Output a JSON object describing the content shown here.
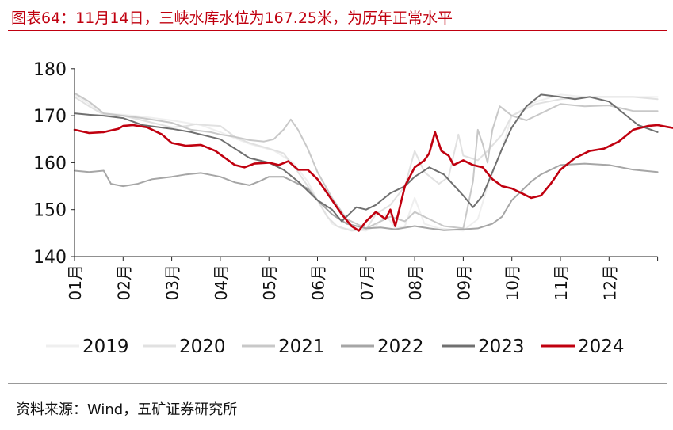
{
  "figure": {
    "title": "图表64：11月14日，三峡水库水位为167.25米，为历年正常水平",
    "source": "资料来源：Wind，五矿证券研究所"
  },
  "chart_data": {
    "type": "line",
    "title": "图表64：11月14日，三峡水库水位为167.25米，为历年正常水平",
    "xlabel": "",
    "ylabel": "",
    "x_ticks": [
      "01月",
      "02月",
      "03月",
      "04月",
      "05月",
      "06月",
      "07月",
      "08月",
      "09月",
      "10月",
      "11月",
      "12月"
    ],
    "y_ticks": [
      140,
      150,
      160,
      170,
      180
    ],
    "ylim": [
      140,
      180
    ],
    "x_unit": "month (1 = Jan 1, 13 = Dec 31 end)",
    "grid": false,
    "legend_position": "bottom",
    "series": [
      {
        "name": "2019",
        "color": "#efefef",
        "points": [
          [
            1.0,
            174.5
          ],
          [
            1.3,
            172.5
          ],
          [
            1.6,
            170.5
          ],
          [
            2.0,
            170.2
          ],
          [
            2.4,
            169.8
          ],
          [
            3.0,
            169.0
          ],
          [
            3.3,
            168.5
          ],
          [
            3.6,
            168.0
          ],
          [
            4.0,
            166.5
          ],
          [
            4.3,
            165.2
          ],
          [
            4.6,
            164.0
          ],
          [
            4.8,
            163.4
          ],
          [
            5.1,
            162.6
          ],
          [
            5.5,
            160.0
          ],
          [
            5.8,
            156.0
          ],
          [
            6.0,
            152.0
          ],
          [
            6.3,
            147.0
          ],
          [
            6.5,
            146.0
          ],
          [
            7.0,
            145.5
          ],
          [
            7.2,
            146.5
          ],
          [
            7.4,
            149.0
          ],
          [
            7.6,
            146.0
          ],
          [
            7.8,
            146.5
          ],
          [
            8.0,
            152.5
          ],
          [
            8.2,
            147.0
          ],
          [
            8.5,
            146.0
          ],
          [
            9.0,
            145.5
          ],
          [
            9.3,
            148.0
          ],
          [
            9.5,
            155.0
          ],
          [
            9.8,
            163.0
          ],
          [
            10.0,
            170.0
          ],
          [
            10.5,
            173.0
          ],
          [
            11.0,
            174.5
          ],
          [
            11.5,
            174.0
          ],
          [
            12.0,
            174.0
          ],
          [
            12.5,
            174.0
          ],
          [
            13.0,
            174.0
          ]
        ]
      },
      {
        "name": "2020",
        "color": "#e1e1e1",
        "points": [
          [
            1.0,
            174.0
          ],
          [
            1.3,
            172.0
          ],
          [
            1.6,
            170.2
          ],
          [
            2.0,
            170.0
          ],
          [
            2.4,
            169.0
          ],
          [
            3.0,
            167.5
          ],
          [
            3.3,
            167.8
          ],
          [
            3.5,
            168.2
          ],
          [
            3.7,
            168.0
          ],
          [
            4.0,
            167.8
          ],
          [
            4.3,
            165.5
          ],
          [
            4.6,
            164.2
          ],
          [
            5.0,
            163.0
          ],
          [
            5.3,
            162.0
          ],
          [
            5.6,
            158.0
          ],
          [
            6.0,
            152.0
          ],
          [
            6.2,
            148.5
          ],
          [
            6.4,
            146.5
          ],
          [
            6.7,
            145.5
          ],
          [
            7.0,
            145.8
          ],
          [
            7.2,
            149.0
          ],
          [
            7.5,
            151.0
          ],
          [
            7.8,
            155.0
          ],
          [
            8.0,
            162.5
          ],
          [
            8.2,
            158.0
          ],
          [
            8.5,
            155.5
          ],
          [
            8.7,
            157.0
          ],
          [
            8.9,
            166.0
          ],
          [
            9.0,
            161.5
          ],
          [
            9.3,
            160.5
          ],
          [
            9.5,
            162.5
          ],
          [
            9.8,
            166.0
          ],
          [
            10.0,
            170.0
          ],
          [
            10.5,
            172.5
          ],
          [
            11.0,
            173.5
          ],
          [
            11.5,
            174.0
          ],
          [
            12.0,
            174.0
          ],
          [
            12.5,
            174.0
          ],
          [
            13.0,
            173.5
          ]
        ]
      },
      {
        "name": "2021",
        "color": "#c8c8c8",
        "points": [
          [
            1.0,
            174.8
          ],
          [
            1.3,
            173.0
          ],
          [
            1.6,
            170.5
          ],
          [
            2.0,
            170.0
          ],
          [
            2.4,
            169.5
          ],
          [
            3.0,
            168.5
          ],
          [
            3.4,
            167.0
          ],
          [
            3.8,
            166.5
          ],
          [
            4.0,
            166.0
          ],
          [
            4.3,
            165.5
          ],
          [
            4.6,
            164.8
          ],
          [
            4.9,
            164.5
          ],
          [
            5.1,
            165.0
          ],
          [
            5.3,
            167.0
          ],
          [
            5.45,
            169.2
          ],
          [
            5.6,
            167.0
          ],
          [
            5.8,
            163.0
          ],
          [
            6.0,
            158.0
          ],
          [
            6.3,
            152.5
          ],
          [
            6.6,
            148.0
          ],
          [
            7.0,
            146.0
          ],
          [
            7.3,
            147.5
          ],
          [
            7.5,
            148.5
          ],
          [
            7.8,
            147.5
          ],
          [
            8.0,
            149.5
          ],
          [
            8.3,
            148.0
          ],
          [
            8.6,
            146.5
          ],
          [
            9.0,
            146.0
          ],
          [
            9.2,
            156.0
          ],
          [
            9.3,
            167.0
          ],
          [
            9.4,
            164.0
          ],
          [
            9.5,
            160.0
          ],
          [
            9.6,
            167.0
          ],
          [
            9.75,
            172.0
          ],
          [
            10.0,
            170.0
          ],
          [
            10.3,
            169.0
          ],
          [
            10.6,
            170.5
          ],
          [
            11.0,
            172.5
          ],
          [
            11.5,
            172.0
          ],
          [
            12.0,
            172.2
          ],
          [
            12.5,
            171.0
          ],
          [
            13.0,
            171.0
          ]
        ]
      },
      {
        "name": "2022",
        "color": "#a6a6a6",
        "points": [
          [
            1.0,
            158.3
          ],
          [
            1.3,
            158.0
          ],
          [
            1.6,
            158.3
          ],
          [
            1.75,
            155.5
          ],
          [
            2.0,
            155.0
          ],
          [
            2.3,
            155.5
          ],
          [
            2.6,
            156.5
          ],
          [
            3.0,
            157.0
          ],
          [
            3.3,
            157.5
          ],
          [
            3.6,
            157.8
          ],
          [
            4.0,
            157.0
          ],
          [
            4.3,
            155.8
          ],
          [
            4.6,
            155.2
          ],
          [
            4.8,
            156.0
          ],
          [
            5.0,
            157.0
          ],
          [
            5.3,
            157.0
          ],
          [
            5.5,
            156.0
          ],
          [
            5.8,
            154.5
          ],
          [
            6.0,
            152.0
          ],
          [
            6.3,
            149.0
          ],
          [
            6.6,
            147.0
          ],
          [
            7.0,
            146.0
          ],
          [
            7.3,
            146.2
          ],
          [
            7.6,
            145.8
          ],
          [
            8.0,
            146.5
          ],
          [
            8.3,
            146.0
          ],
          [
            8.6,
            145.6
          ],
          [
            9.0,
            145.8
          ],
          [
            9.3,
            146.0
          ],
          [
            9.6,
            147.0
          ],
          [
            9.8,
            148.5
          ],
          [
            10.0,
            152.0
          ],
          [
            10.2,
            154.0
          ],
          [
            10.4,
            156.0
          ],
          [
            10.6,
            157.5
          ],
          [
            11.0,
            159.5
          ],
          [
            11.5,
            159.8
          ],
          [
            12.0,
            159.5
          ],
          [
            12.5,
            158.5
          ],
          [
            13.0,
            158.0
          ]
        ]
      },
      {
        "name": "2023",
        "color": "#707070",
        "points": [
          [
            1.0,
            170.5
          ],
          [
            1.3,
            170.2
          ],
          [
            1.6,
            170.0
          ],
          [
            2.0,
            169.5
          ],
          [
            2.4,
            168.0
          ],
          [
            3.0,
            167.2
          ],
          [
            3.4,
            166.5
          ],
          [
            3.8,
            165.5
          ],
          [
            4.0,
            165.0
          ],
          [
            4.3,
            163.0
          ],
          [
            4.6,
            161.0
          ],
          [
            5.0,
            160.0
          ],
          [
            5.3,
            158.5
          ],
          [
            5.6,
            156.0
          ],
          [
            6.0,
            152.0
          ],
          [
            6.3,
            150.0
          ],
          [
            6.5,
            147.5
          ],
          [
            6.8,
            150.5
          ],
          [
            7.0,
            150.0
          ],
          [
            7.2,
            151.0
          ],
          [
            7.5,
            153.5
          ],
          [
            7.8,
            155.0
          ],
          [
            8.0,
            157.0
          ],
          [
            8.3,
            159.0
          ],
          [
            8.6,
            157.5
          ],
          [
            9.0,
            153.0
          ],
          [
            9.2,
            150.5
          ],
          [
            9.4,
            153.0
          ],
          [
            9.6,
            158.0
          ],
          [
            9.8,
            163.0
          ],
          [
            10.0,
            167.5
          ],
          [
            10.3,
            172.0
          ],
          [
            10.6,
            174.5
          ],
          [
            11.0,
            174.0
          ],
          [
            11.3,
            173.5
          ],
          [
            11.6,
            174.0
          ],
          [
            12.0,
            173.0
          ],
          [
            12.3,
            170.5
          ],
          [
            12.6,
            168.0
          ],
          [
            13.0,
            166.5
          ]
        ]
      },
      {
        "name": "2024",
        "color": "#c0000f",
        "points": [
          [
            1.0,
            167.0
          ],
          [
            1.3,
            166.3
          ],
          [
            1.6,
            166.5
          ],
          [
            1.9,
            167.2
          ],
          [
            2.0,
            167.8
          ],
          [
            2.2,
            168.0
          ],
          [
            2.5,
            167.5
          ],
          [
            2.8,
            166.0
          ],
          [
            3.0,
            164.2
          ],
          [
            3.3,
            163.6
          ],
          [
            3.6,
            163.8
          ],
          [
            3.9,
            162.5
          ],
          [
            4.1,
            161.0
          ],
          [
            4.3,
            159.5
          ],
          [
            4.5,
            159.0
          ],
          [
            4.7,
            159.8
          ],
          [
            5.0,
            160.0
          ],
          [
            5.2,
            159.5
          ],
          [
            5.4,
            160.3
          ],
          [
            5.6,
            158.5
          ],
          [
            5.8,
            158.5
          ],
          [
            6.0,
            156.5
          ],
          [
            6.3,
            152.0
          ],
          [
            6.5,
            149.0
          ],
          [
            6.7,
            146.5
          ],
          [
            6.85,
            145.5
          ],
          [
            7.0,
            147.5
          ],
          [
            7.2,
            149.5
          ],
          [
            7.4,
            148.0
          ],
          [
            7.5,
            150.0
          ],
          [
            7.6,
            146.5
          ],
          [
            7.8,
            155.0
          ],
          [
            8.0,
            159.0
          ],
          [
            8.2,
            160.5
          ],
          [
            8.3,
            162.0
          ],
          [
            8.42,
            166.5
          ],
          [
            8.55,
            162.5
          ],
          [
            8.7,
            161.5
          ],
          [
            8.8,
            159.5
          ],
          [
            9.0,
            160.5
          ],
          [
            9.2,
            159.5
          ],
          [
            9.4,
            159.0
          ],
          [
            9.6,
            156.5
          ],
          [
            9.8,
            155.0
          ],
          [
            10.0,
            154.5
          ],
          [
            10.2,
            153.5
          ],
          [
            10.4,
            152.5
          ],
          [
            10.6,
            153.0
          ],
          [
            10.8,
            155.5
          ],
          [
            11.0,
            158.5
          ],
          [
            11.3,
            161.0
          ],
          [
            11.6,
            162.5
          ],
          [
            11.9,
            163.0
          ],
          [
            12.2,
            164.5
          ],
          [
            12.5,
            167.0
          ],
          [
            12.8,
            167.8
          ],
          [
            13.0,
            168.0
          ],
          [
            13.2,
            167.6
          ],
          [
            13.4,
            167.25
          ]
        ]
      }
    ]
  }
}
